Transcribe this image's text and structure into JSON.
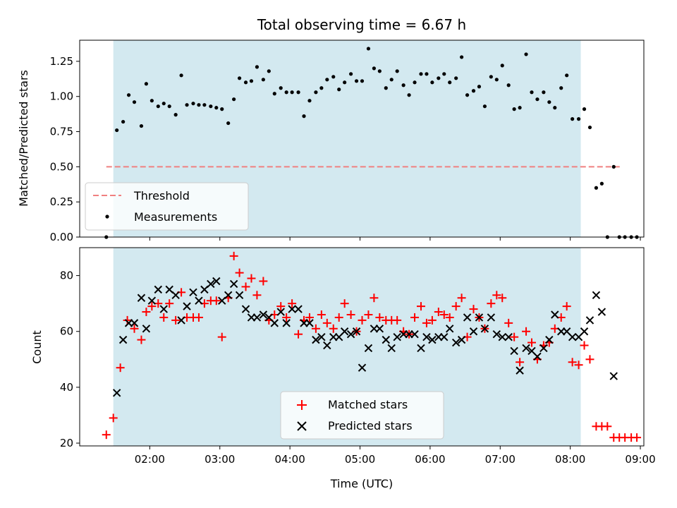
{
  "figure": {
    "title": "Total observing time = 6.67 h",
    "shade_color": "#d3e9f0"
  },
  "chart_data": [
    {
      "type": "scatter",
      "panel": "top",
      "title": "Total observing time = 6.67 h",
      "xlabel": "",
      "ylabel": "Matched/Predicted stars",
      "xlim": [
        1.0,
        9.05
      ],
      "ylim": [
        0.0,
        1.4
      ],
      "x_ticks": [
        "02:00",
        "03:00",
        "04:00",
        "05:00",
        "06:00",
        "07:00",
        "08:00",
        "09:00"
      ],
      "y_ticks": [
        "0.00",
        "0.25",
        "0.50",
        "0.75",
        "1.00",
        "1.25"
      ],
      "shaded_span": [
        1.48,
        8.15
      ],
      "legend_position": "lower left",
      "threshold": {
        "name": "Threshold",
        "value": 0.5,
        "x_range": [
          1.38,
          8.72
        ],
        "color": "#f08080"
      },
      "series": [
        {
          "name": "Measurements",
          "color": "#000000",
          "points": [
            [
              1.38,
              0.0
            ],
            [
              1.53,
              0.76
            ],
            [
              1.62,
              0.82
            ],
            [
              1.7,
              1.01
            ],
            [
              1.78,
              0.96
            ],
            [
              1.88,
              0.79
            ],
            [
              1.95,
              1.09
            ],
            [
              2.03,
              0.97
            ],
            [
              2.12,
              0.93
            ],
            [
              2.2,
              0.95
            ],
            [
              2.28,
              0.93
            ],
            [
              2.37,
              0.87
            ],
            [
              2.45,
              1.15
            ],
            [
              2.53,
              0.94
            ],
            [
              2.62,
              0.95
            ],
            [
              2.7,
              0.94
            ],
            [
              2.78,
              0.94
            ],
            [
              2.87,
              0.93
            ],
            [
              2.95,
              0.92
            ],
            [
              3.03,
              0.91
            ],
            [
              3.12,
              0.81
            ],
            [
              3.2,
              0.98
            ],
            [
              3.28,
              1.13
            ],
            [
              3.37,
              1.1
            ],
            [
              3.45,
              1.11
            ],
            [
              3.53,
              1.21
            ],
            [
              3.62,
              1.12
            ],
            [
              3.7,
              1.18
            ],
            [
              3.78,
              1.02
            ],
            [
              3.87,
              1.06
            ],
            [
              3.95,
              1.03
            ],
            [
              4.03,
              1.03
            ],
            [
              4.12,
              1.03
            ],
            [
              4.2,
              0.86
            ],
            [
              4.28,
              0.97
            ],
            [
              4.37,
              1.03
            ],
            [
              4.45,
              1.06
            ],
            [
              4.53,
              1.12
            ],
            [
              4.62,
              1.14
            ],
            [
              4.7,
              1.05
            ],
            [
              4.78,
              1.1
            ],
            [
              4.87,
              1.16
            ],
            [
              4.95,
              1.11
            ],
            [
              5.03,
              1.11
            ],
            [
              5.12,
              1.34
            ],
            [
              5.2,
              1.2
            ],
            [
              5.28,
              1.18
            ],
            [
              5.37,
              1.06
            ],
            [
              5.45,
              1.12
            ],
            [
              5.53,
              1.18
            ],
            [
              5.62,
              1.08
            ],
            [
              5.7,
              1.01
            ],
            [
              5.78,
              1.1
            ],
            [
              5.87,
              1.16
            ],
            [
              5.95,
              1.16
            ],
            [
              6.03,
              1.1
            ],
            [
              6.12,
              1.13
            ],
            [
              6.2,
              1.16
            ],
            [
              6.28,
              1.1
            ],
            [
              6.37,
              1.13
            ],
            [
              6.45,
              1.28
            ],
            [
              6.53,
              1.01
            ],
            [
              6.62,
              1.04
            ],
            [
              6.7,
              1.07
            ],
            [
              6.78,
              0.93
            ],
            [
              6.87,
              1.14
            ],
            [
              6.95,
              1.12
            ],
            [
              7.03,
              1.22
            ],
            [
              7.12,
              1.08
            ],
            [
              7.2,
              0.91
            ],
            [
              7.28,
              0.92
            ],
            [
              7.37,
              1.3
            ],
            [
              7.45,
              1.03
            ],
            [
              7.53,
              0.98
            ],
            [
              7.62,
              1.03
            ],
            [
              7.7,
              0.96
            ],
            [
              7.78,
              0.92
            ],
            [
              7.87,
              1.06
            ],
            [
              7.95,
              1.15
            ],
            [
              8.03,
              0.84
            ],
            [
              8.12,
              0.84
            ],
            [
              8.2,
              0.91
            ],
            [
              8.28,
              0.78
            ],
            [
              8.37,
              0.35
            ],
            [
              8.45,
              0.38
            ],
            [
              8.53,
              0.0
            ],
            [
              8.62,
              0.5
            ],
            [
              8.7,
              0.0
            ],
            [
              8.78,
              0.0
            ],
            [
              8.87,
              0.0
            ],
            [
              8.95,
              0.0
            ]
          ]
        }
      ]
    },
    {
      "type": "scatter",
      "panel": "bottom",
      "xlabel": "Time (UTC)",
      "ylabel": "Count",
      "xlim": [
        1.0,
        9.05
      ],
      "ylim": [
        19,
        90
      ],
      "x_ticks": [
        "02:00",
        "03:00",
        "04:00",
        "05:00",
        "06:00",
        "07:00",
        "08:00",
        "09:00"
      ],
      "y_ticks": [
        "20",
        "40",
        "60",
        "80"
      ],
      "shaded_span": [
        1.48,
        8.15
      ],
      "legend_position": "lower center",
      "series": [
        {
          "name": "Matched stars",
          "marker": "+",
          "color": "#ff0000",
          "points": [
            [
              1.38,
              23
            ],
            [
              1.48,
              29
            ],
            [
              1.58,
              47
            ],
            [
              1.68,
              64
            ],
            [
              1.78,
              61
            ],
            [
              1.88,
              57
            ],
            [
              1.95,
              67
            ],
            [
              2.03,
              69
            ],
            [
              2.12,
              70
            ],
            [
              2.2,
              65
            ],
            [
              2.28,
              70
            ],
            [
              2.37,
              64
            ],
            [
              2.45,
              74
            ],
            [
              2.53,
              65
            ],
            [
              2.62,
              65
            ],
            [
              2.7,
              65
            ],
            [
              2.78,
              70
            ],
            [
              2.87,
              71
            ],
            [
              2.95,
              71
            ],
            [
              3.03,
              58
            ],
            [
              3.12,
              72
            ],
            [
              3.2,
              87
            ],
            [
              3.28,
              81
            ],
            [
              3.37,
              76
            ],
            [
              3.45,
              79
            ],
            [
              3.53,
              73
            ],
            [
              3.62,
              78
            ],
            [
              3.7,
              64
            ],
            [
              3.78,
              66
            ],
            [
              3.87,
              69
            ],
            [
              3.95,
              65
            ],
            [
              4.03,
              70
            ],
            [
              4.12,
              59
            ],
            [
              4.2,
              64
            ],
            [
              4.28,
              65
            ],
            [
              4.37,
              61
            ],
            [
              4.45,
              66
            ],
            [
              4.53,
              63
            ],
            [
              4.62,
              61
            ],
            [
              4.7,
              65
            ],
            [
              4.78,
              70
            ],
            [
              4.87,
              66
            ],
            [
              4.95,
              60
            ],
            [
              5.03,
              64
            ],
            [
              5.12,
              66
            ],
            [
              5.2,
              72
            ],
            [
              5.28,
              65
            ],
            [
              5.37,
              64
            ],
            [
              5.45,
              64
            ],
            [
              5.53,
              64
            ],
            [
              5.62,
              60
            ],
            [
              5.7,
              59
            ],
            [
              5.78,
              65
            ],
            [
              5.87,
              69
            ],
            [
              5.95,
              63
            ],
            [
              6.03,
              64
            ],
            [
              6.12,
              67
            ],
            [
              6.2,
              66
            ],
            [
              6.28,
              65
            ],
            [
              6.37,
              69
            ],
            [
              6.45,
              72
            ],
            [
              6.53,
              58
            ],
            [
              6.62,
              68
            ],
            [
              6.7,
              65
            ],
            [
              6.78,
              61
            ],
            [
              6.87,
              70
            ],
            [
              6.95,
              73
            ],
            [
              7.03,
              72
            ],
            [
              7.12,
              63
            ],
            [
              7.2,
              58
            ],
            [
              7.28,
              49
            ],
            [
              7.37,
              60
            ],
            [
              7.45,
              56
            ],
            [
              7.53,
              50
            ],
            [
              7.62,
              55
            ],
            [
              7.7,
              56
            ],
            [
              7.78,
              61
            ],
            [
              7.87,
              65
            ],
            [
              7.95,
              69
            ],
            [
              8.03,
              49
            ],
            [
              8.12,
              48
            ],
            [
              8.2,
              55
            ],
            [
              8.28,
              50
            ],
            [
              8.37,
              26
            ],
            [
              8.45,
              26
            ],
            [
              8.53,
              26
            ],
            [
              8.62,
              22
            ],
            [
              8.7,
              22
            ],
            [
              8.78,
              22
            ],
            [
              8.87,
              22
            ],
            [
              8.95,
              22
            ]
          ]
        },
        {
          "name": "Predicted stars",
          "marker": "x",
          "color": "#000000",
          "points": [
            [
              1.53,
              38
            ],
            [
              1.62,
              57
            ],
            [
              1.7,
              63
            ],
            [
              1.78,
              63
            ],
            [
              1.88,
              72
            ],
            [
              1.95,
              61
            ],
            [
              2.03,
              71
            ],
            [
              2.12,
              75
            ],
            [
              2.2,
              68
            ],
            [
              2.28,
              75
            ],
            [
              2.37,
              73
            ],
            [
              2.45,
              64
            ],
            [
              2.53,
              69
            ],
            [
              2.62,
              74
            ],
            [
              2.7,
              71
            ],
            [
              2.78,
              75
            ],
            [
              2.87,
              77
            ],
            [
              2.95,
              78
            ],
            [
              3.03,
              71
            ],
            [
              3.12,
              73
            ],
            [
              3.2,
              77
            ],
            [
              3.28,
              73
            ],
            [
              3.37,
              68
            ],
            [
              3.45,
              65
            ],
            [
              3.53,
              65
            ],
            [
              3.62,
              66
            ],
            [
              3.7,
              65
            ],
            [
              3.78,
              63
            ],
            [
              3.87,
              67
            ],
            [
              3.95,
              63
            ],
            [
              4.03,
              68
            ],
            [
              4.12,
              68
            ],
            [
              4.2,
              63
            ],
            [
              4.28,
              63
            ],
            [
              4.37,
              57
            ],
            [
              4.45,
              58
            ],
            [
              4.53,
              55
            ],
            [
              4.62,
              58
            ],
            [
              4.7,
              58
            ],
            [
              4.78,
              60
            ],
            [
              4.87,
              59
            ],
            [
              4.95,
              60
            ],
            [
              5.03,
              47
            ],
            [
              5.12,
              54
            ],
            [
              5.2,
              61
            ],
            [
              5.28,
              61
            ],
            [
              5.37,
              57
            ],
            [
              5.45,
              54
            ],
            [
              5.53,
              58
            ],
            [
              5.62,
              59
            ],
            [
              5.7,
              59
            ],
            [
              5.78,
              59
            ],
            [
              5.87,
              54
            ],
            [
              5.95,
              58
            ],
            [
              6.03,
              57
            ],
            [
              6.12,
              58
            ],
            [
              6.2,
              58
            ],
            [
              6.28,
              61
            ],
            [
              6.37,
              56
            ],
            [
              6.45,
              57
            ],
            [
              6.53,
              65
            ],
            [
              6.62,
              60
            ],
            [
              6.7,
              65
            ],
            [
              6.78,
              61
            ],
            [
              6.87,
              65
            ],
            [
              6.95,
              59
            ],
            [
              7.03,
              58
            ],
            [
              7.12,
              58
            ],
            [
              7.2,
              53
            ],
            [
              7.28,
              46
            ],
            [
              7.37,
              54
            ],
            [
              7.45,
              53
            ],
            [
              7.53,
              51
            ],
            [
              7.62,
              54
            ],
            [
              7.7,
              57
            ],
            [
              7.78,
              66
            ],
            [
              7.87,
              60
            ],
            [
              7.95,
              60
            ],
            [
              8.03,
              58
            ],
            [
              8.12,
              58
            ],
            [
              8.2,
              60
            ],
            [
              8.28,
              64
            ],
            [
              8.37,
              73
            ],
            [
              8.45,
              67
            ],
            [
              8.62,
              44
            ]
          ]
        }
      ]
    }
  ]
}
